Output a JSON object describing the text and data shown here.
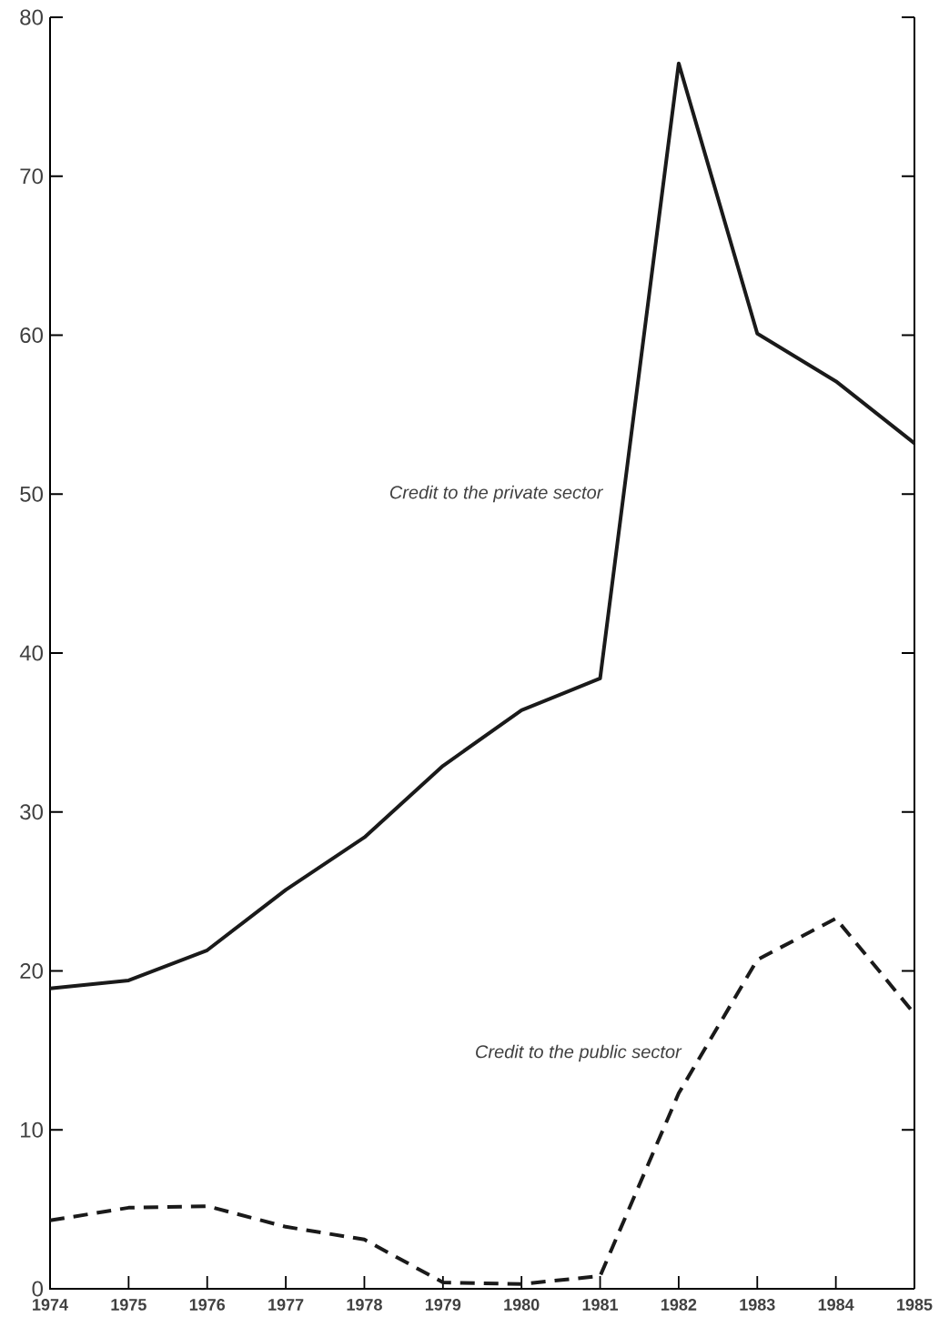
{
  "chart_data": {
    "type": "line",
    "x": [
      1974,
      1975,
      1976,
      1977,
      1978,
      1979,
      1980,
      1981,
      1982,
      1983,
      1984,
      1985
    ],
    "series": [
      {
        "name": "Credit to the private sector",
        "color": "#1a1a1a",
        "line_style": "solid",
        "values": [
          18.9,
          19.4,
          21.3,
          25.1,
          28.4,
          32.9,
          36.4,
          38.4,
          77.1,
          60.1,
          57.1,
          53.2
        ]
      },
      {
        "name": "Credit to the public sector",
        "color": "#1a1a1a",
        "line_style": "dashed",
        "values": [
          4.3,
          5.1,
          5.2,
          3.9,
          3.1,
          0.4,
          0.3,
          0.8,
          12.3,
          20.7,
          23.3,
          17.3
        ]
      }
    ],
    "xlim": [
      1974,
      1985
    ],
    "xticks": [
      1974,
      1975,
      1976,
      1977,
      1978,
      1979,
      1980,
      1981,
      1982,
      1983,
      1984,
      1985
    ],
    "ylim": [
      0,
      80
    ],
    "yticks": [
      0,
      10,
      20,
      30,
      40,
      50,
      60,
      70,
      80
    ],
    "grid": false,
    "marker": "none"
  }
}
